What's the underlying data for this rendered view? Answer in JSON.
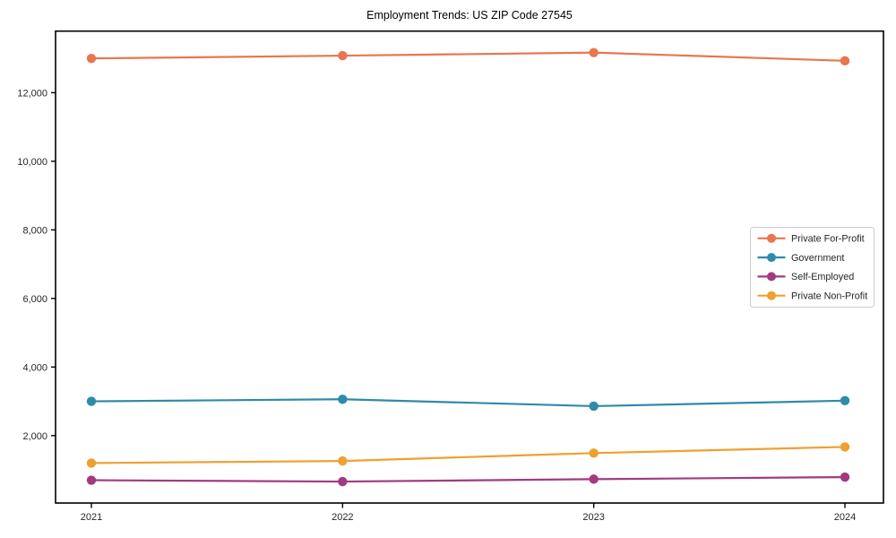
{
  "figure": {
    "title": "Employment Trends: US ZIP Code 27545",
    "background_color": "#ffffff"
  },
  "chart_data": {
    "type": "line",
    "title": "Employment Trends: US ZIP Code 27545",
    "xlabel": "",
    "ylabel": "",
    "categories": [
      "2021",
      "2022",
      "2023",
      "2024"
    ],
    "series": [
      {
        "name": "Private For-Profit",
        "color": "#E8764E",
        "values": [
          13000,
          13080,
          13170,
          12930
        ]
      },
      {
        "name": "Government",
        "color": "#2E8BA9",
        "values": [
          3000,
          3060,
          2860,
          3020
        ]
      },
      {
        "name": "Self-Employed",
        "color": "#A23B7E",
        "values": [
          700,
          660,
          730,
          790
        ]
      },
      {
        "name": "Private Non-Profit",
        "color": "#F0A030",
        "values": [
          1200,
          1260,
          1490,
          1670
        ]
      }
    ],
    "ylim": [
      34,
      13796
    ],
    "yticks": [
      2000,
      4000,
      6000,
      8000,
      10000,
      12000
    ],
    "ytick_labels": [
      "2,000",
      "4,000",
      "6,000",
      "8,000",
      "10,000",
      "12,000"
    ],
    "grid": false,
    "legend_position": "center right",
    "marker": "circle",
    "style": {
      "axis_color": "#000000",
      "tick_label_color": "#262626",
      "legend_border_color": "#cccccc",
      "legend_background": "#ffffff",
      "legend_text_color": "#262626"
    }
  }
}
